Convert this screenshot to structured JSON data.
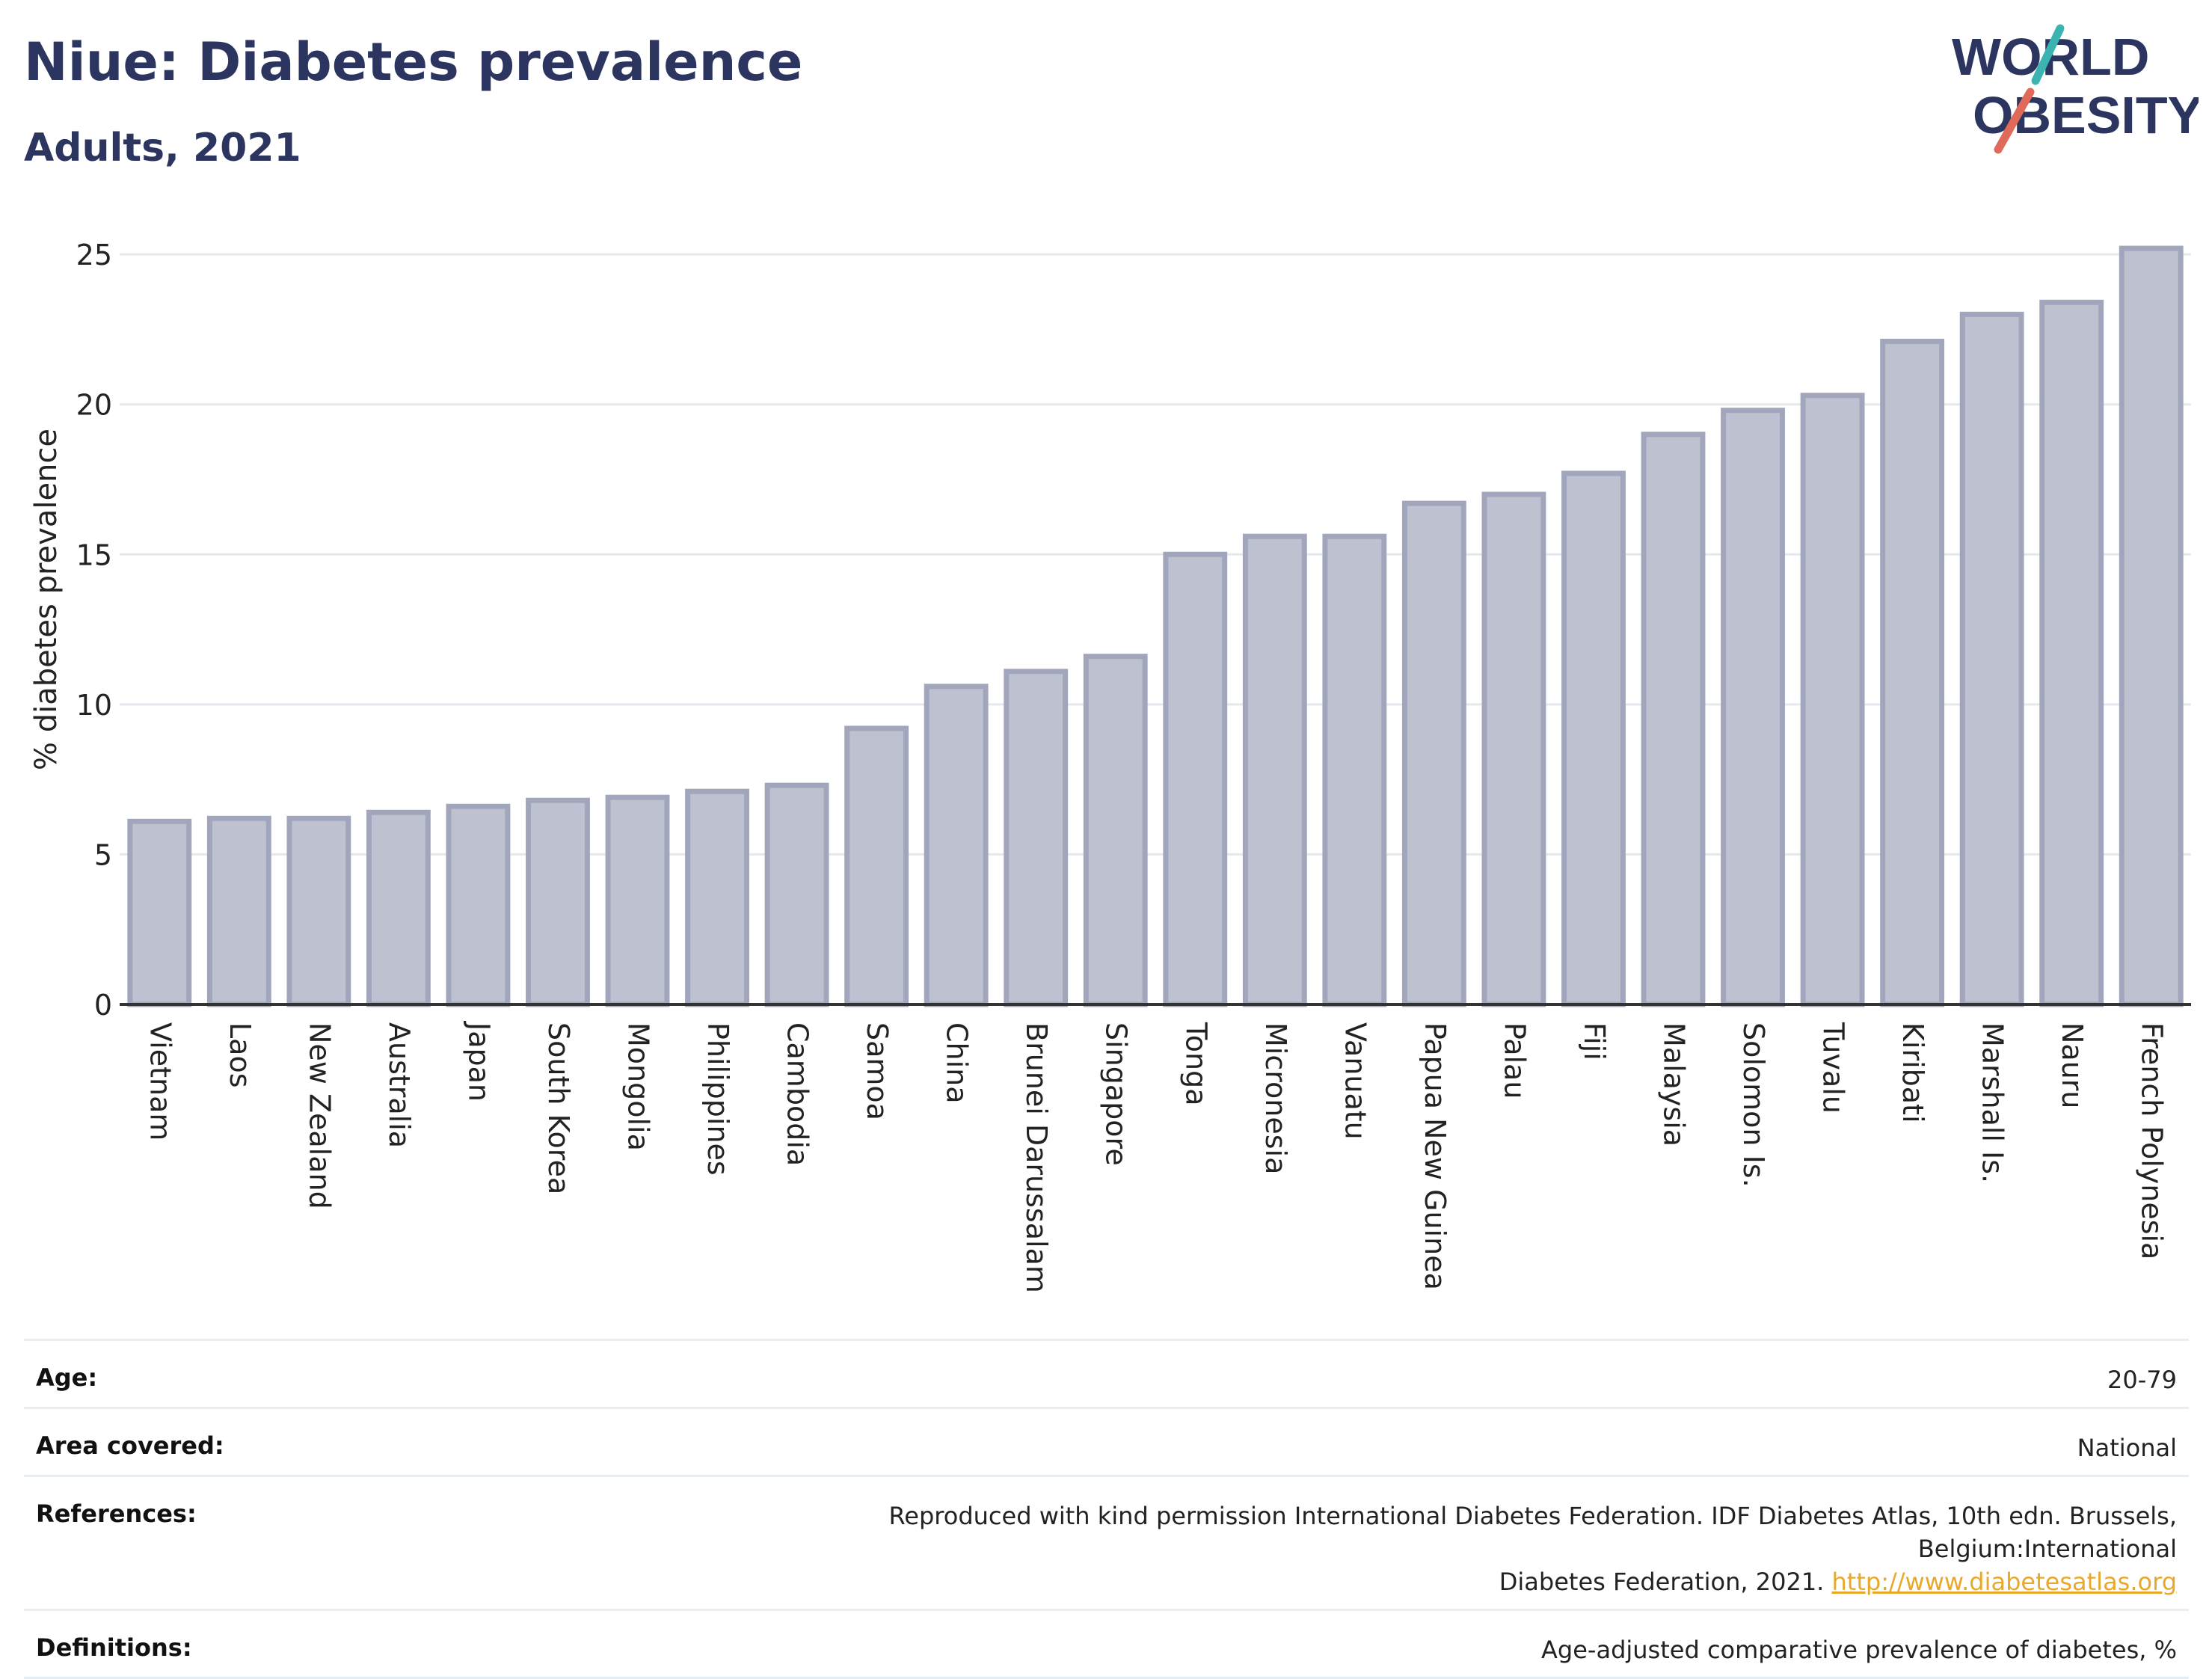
{
  "header": {
    "title": "Niue: Diabetes prevalence",
    "subtitle": "Adults, 2021"
  },
  "logo": {
    "line1": "WORLD",
    "line2": "OBESITY"
  },
  "chart_data": {
    "type": "bar",
    "ylabel": "% diabetes prevalence",
    "ylim": [
      0,
      26
    ],
    "yticks": [
      0,
      5,
      10,
      15,
      20,
      25
    ],
    "grid": true,
    "categories": [
      "Vietnam",
      "Laos",
      "New Zealand",
      "Australia",
      "Japan",
      "South Korea",
      "Mongolia",
      "Philippines",
      "Cambodia",
      "Samoa",
      "China",
      "Brunei Darussalam",
      "Singapore",
      "Tonga",
      "Micronesia",
      "Vanuatu",
      "Papua New Guinea",
      "Palau",
      "Fiji",
      "Malaysia",
      "Solomon Is.",
      "Tuvalu",
      "Kiribati",
      "Marshall Is.",
      "Nauru",
      "French Polynesia"
    ],
    "values": [
      6.1,
      6.2,
      6.2,
      6.4,
      6.6,
      6.8,
      6.9,
      7.1,
      7.3,
      9.2,
      10.6,
      11.1,
      11.6,
      15.0,
      15.6,
      15.6,
      16.7,
      17.0,
      17.7,
      19.0,
      19.8,
      20.3,
      22.1,
      23.0,
      23.4,
      25.2
    ],
    "bar_fill": "#bec1d0",
    "bar_stroke": "#a1a6bd"
  },
  "meta": {
    "age": {
      "label": "Age:",
      "value": "20-79"
    },
    "area": {
      "label": "Area covered:",
      "value": "National"
    },
    "references": {
      "label": "References:",
      "text_line1": "Reproduced with kind permission International Diabetes Federation.  IDF Diabetes Atlas, 10th edn. Brussels, Belgium:International",
      "text_line2": "Diabetes Federation, 2021. ",
      "link": "http://www.diabetesatlas.org"
    },
    "definitions": {
      "label": "Definitions:",
      "value": "Age-adjusted comparative prevalence of diabetes, %"
    }
  },
  "colors": {
    "title": "#2c3560",
    "logo_teal": "#3bb3b0",
    "logo_coral": "#e06a5a",
    "link": "#e8a92b"
  }
}
